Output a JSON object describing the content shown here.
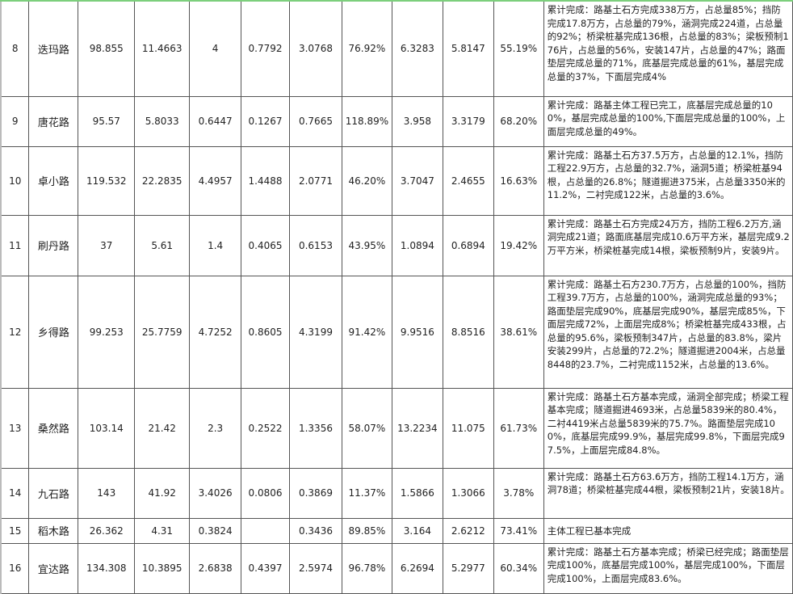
{
  "rows": [
    {
      "no": "8",
      "name": "迭玛路",
      "c1": "98.855",
      "c2": "11.4663",
      "c3": "4",
      "c4": "0.7792",
      "c5": "3.0768",
      "c6": "76.92%",
      "c7": "6.3283",
      "c8": "5.8147",
      "c9": "55.19%",
      "desc": "累计完成：路基土石方完成338万方，占总量85%；挡防完成17.8万方，占总量的79%，涵洞完成224道，占总量的92%；桥梁桩基完成136根，占总量的83%；梁板预制176片，占总量的56%，安装147片，占总量的47%；路面垫层完成总量的71%，底基层完成总量的61%，基层完成总量的37%，下面层完成4%"
    },
    {
      "no": "9",
      "name": "唐花路",
      "c1": "95.57",
      "c2": "5.8033",
      "c3": "0.6447",
      "c4": "0.1267",
      "c5": "0.7665",
      "c6": "118.89%",
      "c7": "3.958",
      "c8": "3.3179",
      "c9": "68.20%",
      "desc": "累计完成：路基主体工程已完工，底基层完成总量的100%，基层完成总量的100%,下面层完成总量的100%，上面层完成总量的49%。"
    },
    {
      "no": "10",
      "name": "卓小路",
      "c1": "119.532",
      "c2": "22.2835",
      "c3": "4.4957",
      "c4": "1.4488",
      "c5": "2.0771",
      "c6": "46.20%",
      "c7": "3.7047",
      "c8": "2.4655",
      "c9": "16.63%",
      "desc": "累计完成：路基土石方37.5万方，占总量的12.1%，挡防工程22.9万方，占总量的32.7%，涵洞5道；桥梁桩基94根，占总量的26.8%；隧道掘进375米，占总量3350米的11.2%，二衬完成122米，占总量的3.6%。"
    },
    {
      "no": "11",
      "name": "刷丹路",
      "c1": "37",
      "c2": "5.61",
      "c3": "1.4",
      "c4": "0.4065",
      "c5": "0.6153",
      "c6": "43.95%",
      "c7": "1.0894",
      "c8": "0.6894",
      "c9": "19.42%",
      "desc": "累计完成：路基土石方完成24万方，挡防工程6.2万方,涵洞完成21道；路面底基层完成10.6万平方米，基层完成9.2万平方米，桥梁桩基完成14根，梁板预制9片，安装9片。"
    },
    {
      "no": "12",
      "name": "乡得路",
      "c1": "99.253",
      "c2": "25.7759",
      "c3": "4.7252",
      "c4": "0.8605",
      "c5": "4.3199",
      "c6": "91.42%",
      "c7": "9.9516",
      "c8": "8.8516",
      "c9": "38.61%",
      "desc": "累计完成：路基土石方230.7万方，占总量的100%，挡防工程39.7万方，占总量的100%，涵洞完成总量的93%；路面垫层完成90%，底基层完成90%，基层完成85%，下面层完成72%，上面层完成8%；桥梁桩基完成433根，占总量的95.6%，梁板预制347片，占总量的83.8%，梁片安装299片，占总量的72.2%；隧道掘进2004米，占总量8448的23.7%，二衬完成1152米，占总量的13.6%。"
    },
    {
      "no": "13",
      "name": "桑然路",
      "c1": "103.14",
      "c2": "21.42",
      "c3": "2.3",
      "c4": "0.2522",
      "c5": "1.3356",
      "c6": "58.07%",
      "c7": "13.2234",
      "c8": "11.075",
      "c9": "61.73%",
      "desc": "累计完成：路基土石方基本完成，涵洞全部完成；桥梁工程基本完成；隧道掘进4693米，占总量5839米的80.4%，二衬4419米占总量5839米的75.7%。路面垫层完成100%，底基层完成99.9%，基层完成99.8%，下面层完成97.5%，上面层完成84.8%。"
    },
    {
      "no": "14",
      "name": "九石路",
      "c1": "143",
      "c2": "41.92",
      "c3": "3.4026",
      "c4": "0.0806",
      "c5": "0.3869",
      "c6": "11.37%",
      "c7": "1.5866",
      "c8": "1.3066",
      "c9": "3.78%",
      "desc": "累计完成：路基土石方63.6万方，挡防工程14.1万方，涵洞78道；桥梁桩基完成44根，梁板预制21片，安装18片。"
    },
    {
      "no": "15",
      "name": "稻木路",
      "c1": "26.362",
      "c2": "4.31",
      "c3": "0.3824",
      "c4": "",
      "c5": "0.3436",
      "c6": "89.85%",
      "c7": "3.164",
      "c8": "2.6212",
      "c9": "73.41%",
      "desc": "主体工程已基本完成"
    },
    {
      "no": "16",
      "name": "宜达路",
      "c1": "134.308",
      "c2": "10.3895",
      "c3": "2.6838",
      "c4": "0.4397",
      "c5": "2.5974",
      "c6": "96.78%",
      "c7": "6.2694",
      "c8": "5.2977",
      "c9": "60.34%",
      "desc": "累计完成：路基土石方基本完成；桥梁已经完成；路面垫层完成100%，底基层完成100%，基层完成100%，下面层完成100%，上面层完成83.6%。"
    }
  ]
}
